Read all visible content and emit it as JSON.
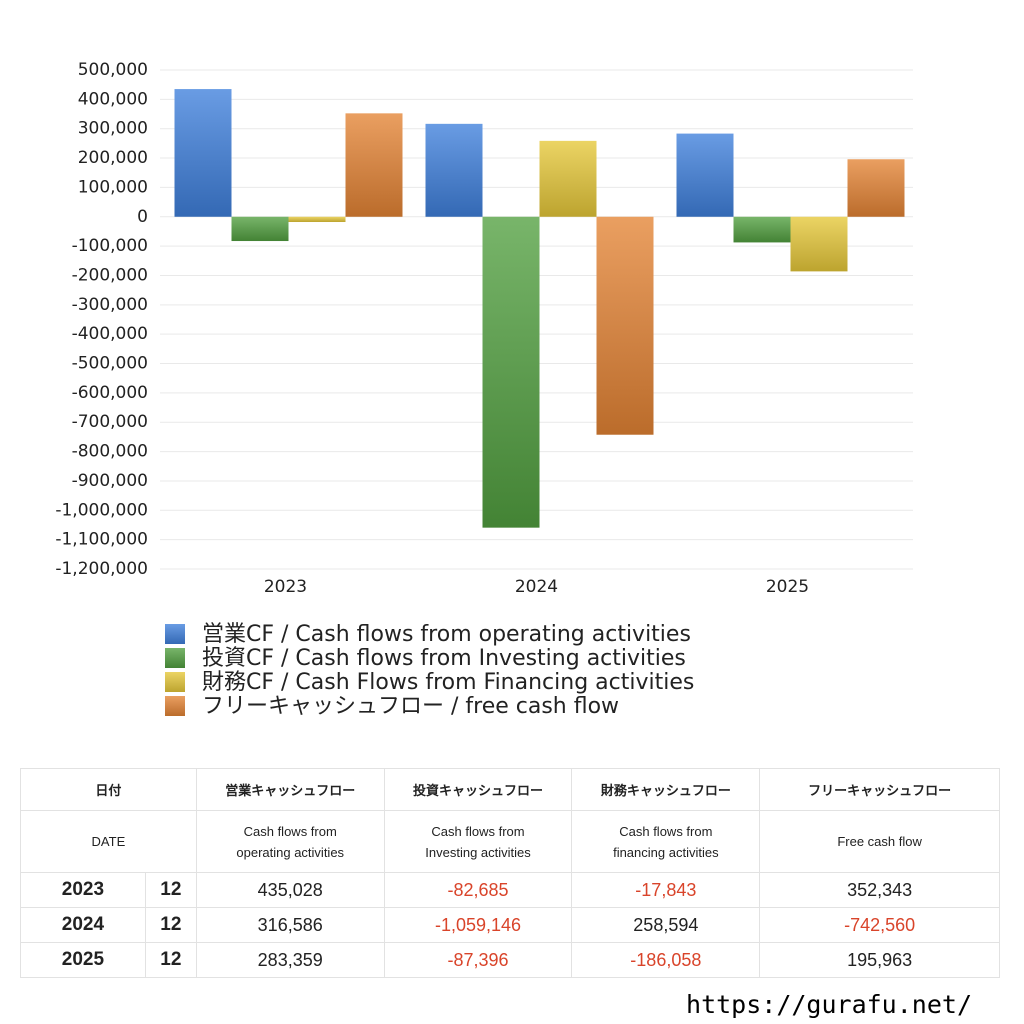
{
  "chart_data": {
    "type": "bar",
    "categories": [
      "2023",
      "2024",
      "2025"
    ],
    "series": [
      {
        "name": "営業CF / Cash flows from operating activities",
        "color": "#3f80dc",
        "values": [
          435028,
          316586,
          283359
        ]
      },
      {
        "name": "投資CF / Cash flows from Investing activities",
        "color": "#52a040",
        "values": [
          -82685,
          -1059146,
          -87396
        ]
      },
      {
        "name": "財務CF / Cash Flows from Financing activities",
        "color": "#e6c838",
        "values": [
          -17843,
          258594,
          -186058
        ]
      },
      {
        "name": "フリーキャッシュフロー / free cash flow",
        "color": "#e48434",
        "values": [
          352343,
          -742560,
          195963
        ]
      }
    ],
    "ylim": [
      -1200000,
      500000
    ],
    "yticks": [
      {
        "value": 500000,
        "label": "500,000"
      },
      {
        "value": 400000,
        "label": "400,000"
      },
      {
        "value": 300000,
        "label": "300,000"
      },
      {
        "value": 200000,
        "label": "200,000"
      },
      {
        "value": 100000,
        "label": "100,000"
      },
      0,
      {
        "value": -100000,
        "label": "-100,000"
      },
      {
        "value": -200000,
        "label": "-200,000"
      },
      {
        "value": -300000,
        "label": "-300,000"
      },
      {
        "value": -400000,
        "label": "-400,000"
      },
      {
        "value": -500000,
        "label": "-500,000"
      },
      {
        "value": -600000,
        "label": "-600,000"
      },
      {
        "value": -700000,
        "label": "-700,000"
      },
      {
        "value": -800000,
        "label": "-800,000"
      },
      {
        "value": -900000,
        "label": "-900,000"
      },
      {
        "value": -1000000,
        "label": "-1,000,000"
      },
      {
        "value": -1100000,
        "label": "-1,100,000"
      },
      {
        "value": -1200000,
        "label": "-1,200,000"
      }
    ],
    "grid": true
  },
  "table": {
    "header": [
      [
        "日付",
        "営業キャッシュフロー",
        "投資キャッシュフロー",
        "財務キャッシュフロー",
        "フリーキャッシュフロー"
      ],
      [
        [
          "DATE"
        ],
        [
          "Cash flows from",
          "operating activities"
        ],
        [
          "Cash flows from",
          "Investing activities"
        ],
        [
          "Cash flows from",
          "financing activities"
        ],
        [
          "Free cash flow"
        ]
      ]
    ],
    "rows": [
      [
        "2023",
        "12",
        "435,028",
        "-82,685",
        "-17,843",
        "352,343"
      ],
      [
        "2024",
        "12",
        "316,586",
        "-1,059,146",
        "258,594",
        "-742,560"
      ],
      [
        "2025",
        "12",
        "283,359",
        "-87,396",
        "-186,058",
        "195,963"
      ]
    ]
  },
  "footer": "https://gurafu.net/"
}
